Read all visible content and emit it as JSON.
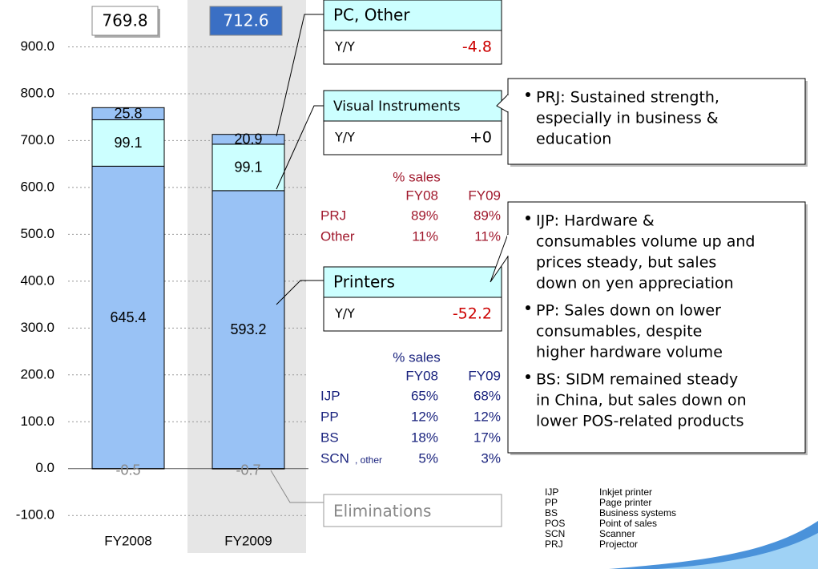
{
  "chart_data": {
    "type": "bar",
    "stacked": true,
    "categories": [
      "FY2008",
      "FY2009"
    ],
    "series": [
      {
        "name": "Printers",
        "color": "#99c2f5",
        "values": [
          645.4,
          593.2
        ],
        "yoy": -52.2
      },
      {
        "name": "Visual Instruments",
        "color": "#ccffff",
        "values": [
          99.1,
          99.1
        ],
        "yoy": {
          "value": 0,
          "label": "+0"
        }
      },
      {
        "name": "PC, Other",
        "color": "#99c2f5",
        "values": [
          25.8,
          20.9
        ],
        "yoy": -4.8
      },
      {
        "name": "Eliminations",
        "color": "#99c2f5",
        "values": [
          -0.5,
          -0.7
        ]
      }
    ],
    "totals": [
      769.8,
      712.6
    ],
    "yoy_label": "Y/Y",
    "ylim": [
      -180,
      1000
    ],
    "yticks": [
      {
        "value": -100,
        "label": "-100.0"
      },
      {
        "value": 0,
        "label": "0.0"
      },
      {
        "value": 100,
        "label": "100.0"
      },
      {
        "value": 200,
        "label": "200.0"
      },
      {
        "value": 300,
        "label": "300.0"
      },
      {
        "value": 400,
        "label": "400.0"
      },
      {
        "value": 500,
        "label": "500.0"
      },
      {
        "value": 600,
        "label": "600.0"
      },
      {
        "value": 700,
        "label": "700.0"
      },
      {
        "value": 800,
        "label": "800.0"
      },
      {
        "value": 900,
        "label": "900.0"
      }
    ],
    "grid": true,
    "share_tables": [
      {
        "header": "% sales",
        "columns": [
          "FY08",
          "FY09"
        ],
        "color": "#a0182c",
        "rows": [
          [
            "PRJ",
            "89%",
            "89%"
          ],
          [
            "Other",
            "11%",
            "11%"
          ]
        ]
      },
      {
        "header": "% sales",
        "columns": [
          "FY08",
          "FY09"
        ],
        "color": "#1a237e",
        "rows": [
          [
            "IJP",
            "65%",
            "68%"
          ],
          [
            "PP",
            "12%",
            "12%"
          ],
          [
            "BS",
            "18%",
            "17%"
          ],
          [
            "SCN",
            "5%",
            "3%"
          ]
        ],
        "suffix": ", other"
      }
    ],
    "notes": [
      {
        "bullets": [
          [
            "PRJ: Sustained strength,",
            "especially in business &",
            "education"
          ]
        ]
      },
      {
        "bullets": [
          [
            "IJP: Hardware &",
            "consumables volume up and",
            "prices steady, but sales",
            "down on yen appreciation"
          ],
          [
            "PP: Sales down on lower",
            "consumables, despite",
            "higher hardware volume"
          ],
          [
            "BS: SIDM remained steady",
            "in China, but sales down on",
            "lower POS-related products"
          ]
        ]
      }
    ],
    "glossary": [
      [
        "IJP",
        "Inkjet printer"
      ],
      [
        "PP",
        "Page printer"
      ],
      [
        "BS",
        "Business systems"
      ],
      [
        "POS",
        "Point of sales"
      ],
      [
        "SCN",
        "Scanner"
      ],
      [
        "PRJ",
        "Projector"
      ]
    ]
  }
}
